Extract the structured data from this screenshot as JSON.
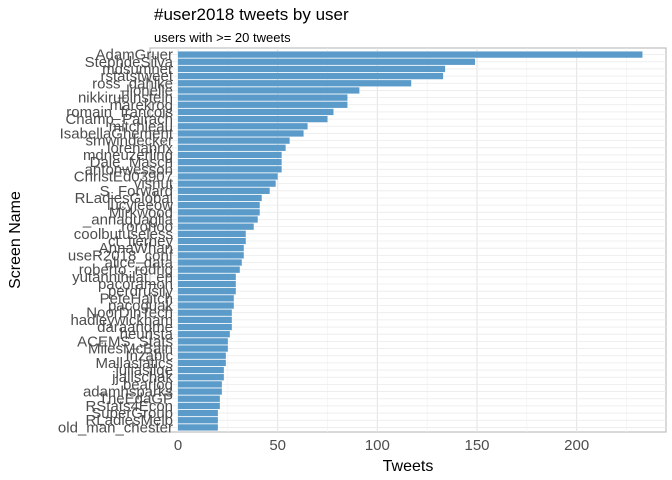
{
  "chart_data": {
    "type": "bar",
    "orientation": "horizontal",
    "title": "#user2018 tweets by user",
    "subtitle": "users with >= 20 tweets",
    "xlabel": "Tweets",
    "ylabel": "Screen Name",
    "xlim": [
      0,
      245
    ],
    "xticks": [
      0,
      50,
      100,
      150,
      200
    ],
    "grid": true,
    "bar_color": "#5b9bc9",
    "categories": [
      "AdamGruer",
      "StephdeSilva",
      "mdsumner",
      "rstatstweet",
      "ross_dahlke",
      "_lionelle",
      "nikkirubinstein",
      "marekrog",
      "romain_francois",
      "Champ_Pairach",
      "mitchleau",
      "IsabellaGhement",
      "smwindecker",
      "lorenanrix",
      "mdneuzerling",
      "Dale_Masch",
      "antonwesson",
      "ChristEd03907",
      "visnut",
      "S_Forward",
      "RLadiesGlobal",
      "lucyleeow",
      "Mirkwood",
      "_annaquaglia",
      "rorohoo",
      "coolbutuseless",
      "ct_tierney",
      "AnnaWhan",
      "useR2018_conf",
      "alice_data",
      "roberto_rodrig",
      "yutannihilat_en",
      "pacoramon",
      "perdrusily",
      "PeteHaitch",
      "pacoguak",
      "NoorDinTech",
      "hadleywickham",
      "daraandme",
      "heurista",
      "ACEMS_Stats",
      "MilesMcBain",
      "Inzabic",
      "Mallaslatics",
      "juliasilge",
      "jjallschak",
      "bearlog",
      "adamhsparks",
      "TheEdaGP",
      "RStats4Econ",
      "SuperGroup",
      "RLadiesMelb",
      "old_man_chester"
    ],
    "values": [
      233,
      149,
      134,
      133,
      117,
      91,
      85,
      85,
      78,
      75,
      65,
      63,
      56,
      54,
      52,
      52,
      52,
      50,
      49,
      46,
      42,
      41,
      41,
      40,
      38,
      34,
      34,
      33,
      33,
      32,
      31,
      29,
      29,
      29,
      28,
      28,
      27,
      27,
      27,
      26,
      25,
      25,
      24,
      24,
      23,
      23,
      22,
      22,
      21,
      21,
      20,
      20,
      20
    ]
  }
}
